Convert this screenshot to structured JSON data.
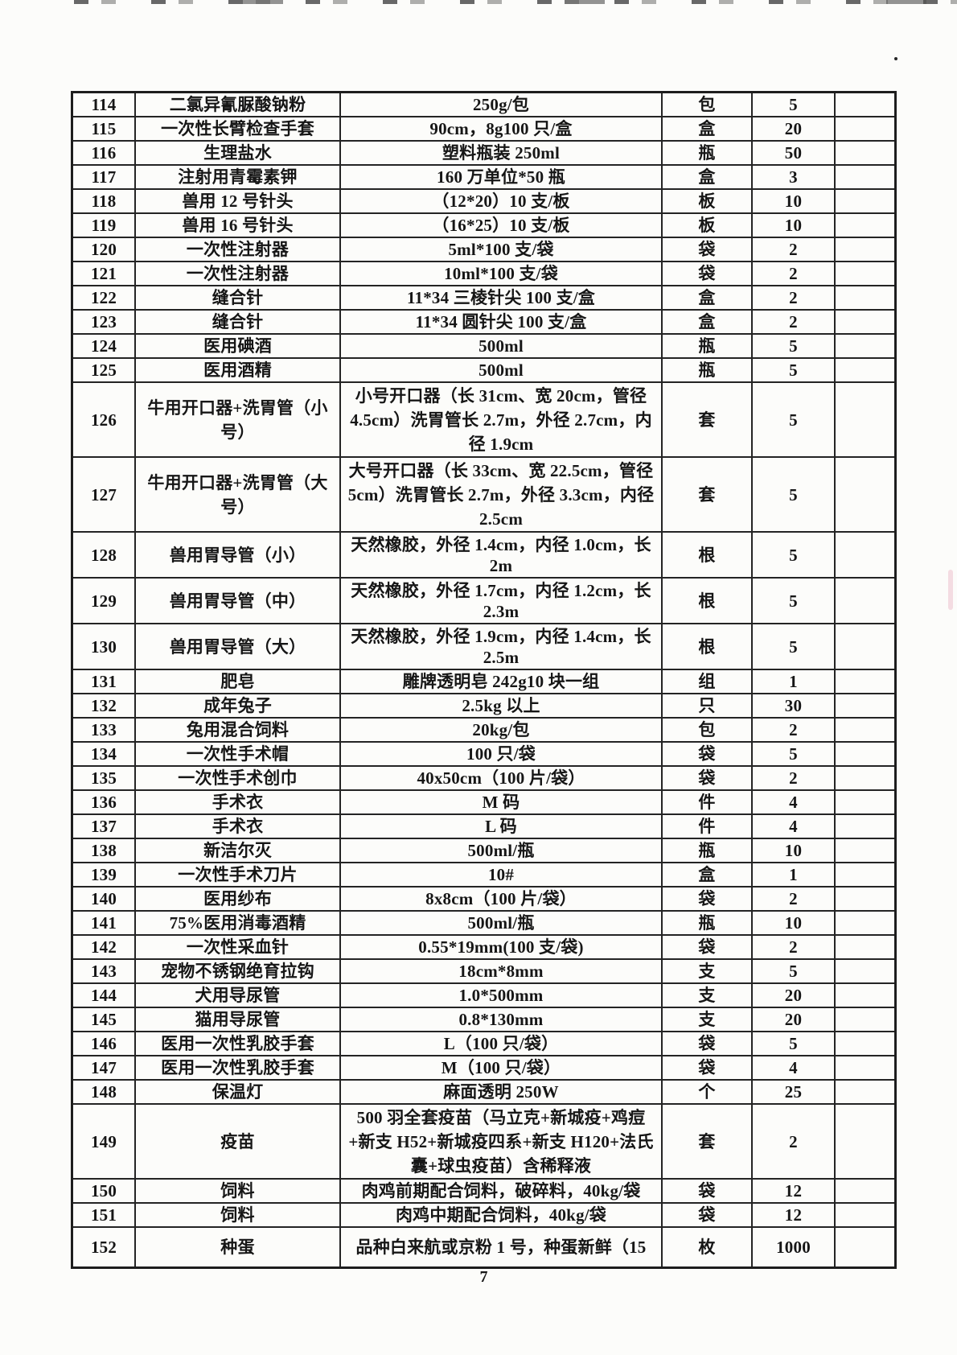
{
  "page": {
    "number": "7"
  },
  "table": {
    "rows": [
      {
        "no": "114",
        "name": "二氯异氰脲酸钠粉",
        "spec": "250g/包",
        "unit": "包",
        "qty": "5"
      },
      {
        "no": "115",
        "name": "一次性长臂检查手套",
        "spec": "90cm，8g100 只/盒",
        "unit": "盒",
        "qty": "20"
      },
      {
        "no": "116",
        "name": "生理盐水",
        "spec": "塑料瓶装 250ml",
        "unit": "瓶",
        "qty": "50"
      },
      {
        "no": "117",
        "name": "注射用青霉素钾",
        "spec": "160 万单位*50 瓶",
        "unit": "盒",
        "qty": "3"
      },
      {
        "no": "118",
        "name": "兽用 12 号针头",
        "spec": "（12*20）10 支/板",
        "unit": "板",
        "qty": "10"
      },
      {
        "no": "119",
        "name": "兽用 16 号针头",
        "spec": "（16*25）10 支/板",
        "unit": "板",
        "qty": "10"
      },
      {
        "no": "120",
        "name": "一次性注射器",
        "spec": "5ml*100 支/袋",
        "unit": "袋",
        "qty": "2"
      },
      {
        "no": "121",
        "name": "一次性注射器",
        "spec": "10ml*100 支/袋",
        "unit": "袋",
        "qty": "2"
      },
      {
        "no": "122",
        "name": "缝合针",
        "spec": "11*34 三棱针尖 100 支/盒",
        "unit": "盒",
        "qty": "2"
      },
      {
        "no": "123",
        "name": "缝合针",
        "spec": "11*34 圆针尖 100 支/盒",
        "unit": "盒",
        "qty": "2"
      },
      {
        "no": "124",
        "name": "医用碘酒",
        "spec": "500ml",
        "unit": "瓶",
        "qty": "5"
      },
      {
        "no": "125",
        "name": "医用酒精",
        "spec": "500ml",
        "unit": "瓶",
        "qty": "5"
      },
      {
        "no": "126",
        "name": "牛用开口器+洗胃管（小号）",
        "spec": "小号开口器（长 31cm、宽 20cm，管径 4.5cm）洗胃管长 2.7m，外径 2.7cm，内径 1.9cm",
        "unit": "套",
        "qty": "5"
      },
      {
        "no": "127",
        "name": "牛用开口器+洗胃管（大号）",
        "spec": "大号开口器（长 33cm、宽 22.5cm，管径 5cm）洗胃管长 2.7m，外径 3.3cm，内径 2.5cm",
        "unit": "套",
        "qty": "5"
      },
      {
        "no": "128",
        "name": "兽用胃导管（小）",
        "spec": "天然橡胶，外径 1.4cm，内径 1.0cm，长 2m",
        "unit": "根",
        "qty": "5"
      },
      {
        "no": "129",
        "name": "兽用胃导管（中）",
        "spec": "天然橡胶，外径 1.7cm，内径 1.2cm，长 2.3m",
        "unit": "根",
        "qty": "5"
      },
      {
        "no": "130",
        "name": "兽用胃导管（大）",
        "spec": "天然橡胶，外径 1.9cm，内径 1.4cm，长 2.5m",
        "unit": "根",
        "qty": "5"
      },
      {
        "no": "131",
        "name": "肥皂",
        "spec": "雕牌透明皂 242g10 块一组",
        "unit": "组",
        "qty": "1"
      },
      {
        "no": "132",
        "name": "成年兔子",
        "spec": "2.5kg 以上",
        "unit": "只",
        "qty": "30"
      },
      {
        "no": "133",
        "name": "兔用混合饲料",
        "spec": "20kg/包",
        "unit": "包",
        "qty": "2"
      },
      {
        "no": "134",
        "name": "一次性手术帽",
        "spec": "100 只/袋",
        "unit": "袋",
        "qty": "5"
      },
      {
        "no": "135",
        "name": "一次性手术创巾",
        "spec": "40x50cm（100 片/袋）",
        "unit": "袋",
        "qty": "2"
      },
      {
        "no": "136",
        "name": "手术衣",
        "spec": "M 码",
        "unit": "件",
        "qty": "4"
      },
      {
        "no": "137",
        "name": "手术衣",
        "spec": "L 码",
        "unit": "件",
        "qty": "4"
      },
      {
        "no": "138",
        "name": "新洁尔灭",
        "spec": "500ml/瓶",
        "unit": "瓶",
        "qty": "10"
      },
      {
        "no": "139",
        "name": "一次性手术刀片",
        "spec": "10#",
        "unit": "盒",
        "qty": "1"
      },
      {
        "no": "140",
        "name": "医用纱布",
        "spec": "8x8cm（100 片/袋）",
        "unit": "袋",
        "qty": "2"
      },
      {
        "no": "141",
        "name": "75%医用消毒酒精",
        "spec": "500ml/瓶",
        "unit": "瓶",
        "qty": "10"
      },
      {
        "no": "142",
        "name": "一次性采血针",
        "spec": "0.55*19mm(100 支/袋)",
        "unit": "袋",
        "qty": "2"
      },
      {
        "no": "143",
        "name": "宠物不锈钢绝育拉钩",
        "spec": "18cm*8mm",
        "unit": "支",
        "qty": "5"
      },
      {
        "no": "144",
        "name": "犬用导尿管",
        "spec": "1.0*500mm",
        "unit": "支",
        "qty": "20"
      },
      {
        "no": "145",
        "name": "猫用导尿管",
        "spec": "0.8*130mm",
        "unit": "支",
        "qty": "20"
      },
      {
        "no": "146",
        "name": "医用一次性乳胶手套",
        "spec": "L（100 只/袋）",
        "unit": "袋",
        "qty": "5"
      },
      {
        "no": "147",
        "name": "医用一次性乳胶手套",
        "spec": "M（100 只/袋）",
        "unit": "袋",
        "qty": "4"
      },
      {
        "no": "148",
        "name": "保温灯",
        "spec": "麻面透明 250W",
        "unit": "个",
        "qty": "25"
      },
      {
        "no": "149",
        "name": "疫苗",
        "spec": "500 羽全套疫苗（马立克+新城疫+鸡痘+新支 H52+新城疫四系+新支 H120+法氏囊+球虫疫苗）含稀释液",
        "unit": "套",
        "qty": "2"
      },
      {
        "no": "150",
        "name": "饲料",
        "spec": "肉鸡前期配合饲料，破碎料，40kg/袋",
        "unit": "袋",
        "qty": "12"
      },
      {
        "no": "151",
        "name": "饲料",
        "spec": "肉鸡中期配合饲料，40kg/袋",
        "unit": "袋",
        "qty": "12"
      },
      {
        "no": "152",
        "name": "种蛋",
        "spec": "品种白来航或京粉 1 号，种蛋新鲜（15",
        "unit": "枚",
        "qty": "1000"
      }
    ]
  }
}
